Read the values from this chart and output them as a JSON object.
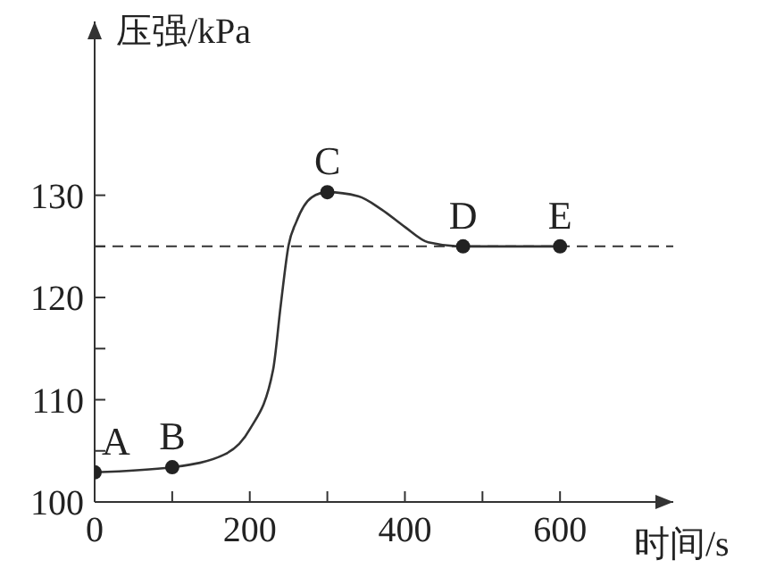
{
  "chart_data": {
    "type": "line",
    "ylabel": "压强/kPa",
    "xlabel": "时间/s",
    "xlim": [
      0,
      746
    ],
    "ylim": [
      100,
      147
    ],
    "xticks": [
      0,
      {
        "value": 100,
        "label": null
      },
      200,
      {
        "value": 300,
        "label": null
      },
      400,
      {
        "value": 500,
        "label": null
      },
      600
    ],
    "yticks": [
      100,
      {
        "value": 105,
        "label": null
      },
      110,
      {
        "value": 115,
        "label": null
      },
      120,
      {
        "value": 125,
        "label": null
      },
      130
    ],
    "series": [
      {
        "color": "#333333",
        "marker": "none",
        "x": [
          0,
          100,
          169,
          200,
          230,
          240,
          250,
          260,
          280,
          300,
          340,
          370,
          400,
          430,
          475,
          600
        ],
        "values": [
          102.9,
          103.4,
          104.7,
          107.1,
          112.9,
          119.3,
          125.1,
          127.4,
          129.8,
          130.3,
          129.9,
          128.6,
          126.9,
          125.4,
          125,
          125
        ]
      },
      {
        "type": "scatter",
        "color": "#222222",
        "marker": "circle",
        "x": [
          0,
          100,
          300,
          475,
          600
        ],
        "values": [
          102.9,
          103.4,
          130.3,
          125,
          125
        ]
      }
    ],
    "ref_lines": [
      {
        "axis": "y",
        "value": 125,
        "line_style": "dashed",
        "color": "#333333"
      }
    ],
    "annotations": [
      {
        "text": "A",
        "x": 0,
        "y": 102.9
      },
      {
        "text": "B",
        "x": 100,
        "y": 103.4
      },
      {
        "text": "C",
        "x": 300,
        "y": 130.3
      },
      {
        "text": "D",
        "x": 475,
        "y": 125
      },
      {
        "text": "E",
        "x": 600,
        "y": 125
      }
    ],
    "grid": false,
    "legend": false
  }
}
